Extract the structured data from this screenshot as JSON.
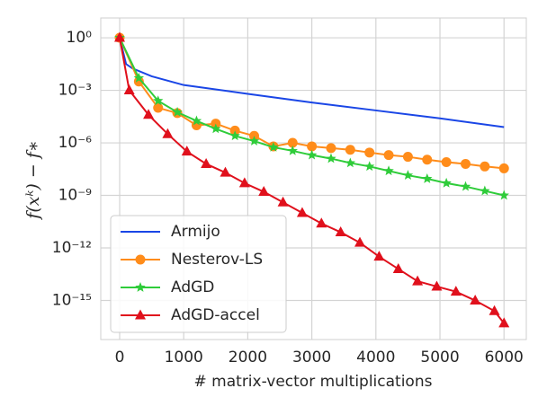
{
  "chart_data": {
    "type": "line",
    "xlabel": "# matrix-vector multiplications",
    "ylabel": "f(xᵏ) − f∗",
    "xlim": [
      -295,
      6348
    ],
    "ylim": [
      5.9e-18,
      13.5
    ],
    "log_y": true,
    "grid": true,
    "legend": "lower left",
    "xticks": [
      0,
      1000,
      2000,
      3000,
      4000,
      5000,
      6000
    ],
    "yticks": [
      {
        "value": 1,
        "label": "10⁰"
      },
      {
        "value": 0.001,
        "label": "10⁻³"
      },
      {
        "value": 1e-06,
        "label": "10⁻⁶"
      },
      {
        "value": 1e-09,
        "label": "10⁻⁹"
      },
      {
        "value": 1e-12,
        "label": "10⁻¹²"
      },
      {
        "value": 1e-15,
        "label": "10⁻¹⁵"
      }
    ],
    "series": [
      {
        "name": "Armijo",
        "color": "#1a46e6",
        "x": [
          0,
          100,
          200,
          500,
          1000,
          2000,
          3000,
          4000,
          5000,
          6000
        ],
        "values": [
          1,
          0.0316,
          0.0178,
          0.0063,
          0.002,
          0.00063,
          0.0002,
          7.1e-05,
          2.5e-05,
          7.9e-06
        ]
      },
      {
        "name": "Nesterov-LS",
        "color": "#ff8c1a",
        "marker": "circle",
        "x": [
          0,
          300,
          600,
          900,
          1200,
          1500,
          1800,
          2100,
          2400,
          2700,
          3000,
          3300,
          3600,
          3900,
          4200,
          4500,
          4800,
          5100,
          5400,
          5700,
          6000
        ],
        "values": [
          1,
          0.0032,
          0.0001,
          5e-05,
          1e-05,
          1.26e-05,
          5e-06,
          2.5e-06,
          6.3e-07,
          1e-06,
          6.3e-07,
          5e-07,
          4e-07,
          2.8e-07,
          2e-07,
          1.6e-07,
          1.1e-07,
          7.9e-08,
          6.3e-08,
          4.5e-08,
          3.5e-08
        ]
      },
      {
        "name": "AdGD",
        "color": "#2fcc3a",
        "marker": "star",
        "x": [
          0,
          300,
          600,
          900,
          1200,
          1500,
          1800,
          2100,
          2400,
          2700,
          3000,
          3300,
          3600,
          3900,
          4200,
          4500,
          4800,
          5100,
          5400,
          5700,
          6000
        ],
        "values": [
          1,
          0.005,
          0.00025,
          5.6e-05,
          1.8e-05,
          6.3e-06,
          2.5e-06,
          1.26e-06,
          5.6e-07,
          3.5e-07,
          2e-07,
          1.26e-07,
          7.1e-08,
          4.5e-08,
          2.5e-08,
          1.4e-08,
          8.9e-09,
          5e-09,
          3.2e-09,
          1.8e-09,
          1e-09
        ]
      },
      {
        "name": "AdGD-accel",
        "color": "#e0101c",
        "marker": "triangle",
        "x": [
          0,
          150,
          450,
          750,
          1050,
          1350,
          1650,
          1950,
          2250,
          2550,
          2850,
          3150,
          3450,
          3750,
          4050,
          4350,
          4650,
          4950,
          5250,
          5550,
          5850,
          6000
        ],
        "values": [
          1,
          0.001,
          4e-05,
          3.2e-06,
          3.2e-07,
          6.3e-08,
          2e-08,
          5e-09,
          1.6e-09,
          4e-10,
          1e-10,
          2.5e-11,
          7.9e-12,
          2e-12,
          3.2e-13,
          6.3e-14,
          1.26e-14,
          6.3e-15,
          3.2e-15,
          1e-15,
          2.5e-16,
          5e-17
        ]
      }
    ]
  }
}
